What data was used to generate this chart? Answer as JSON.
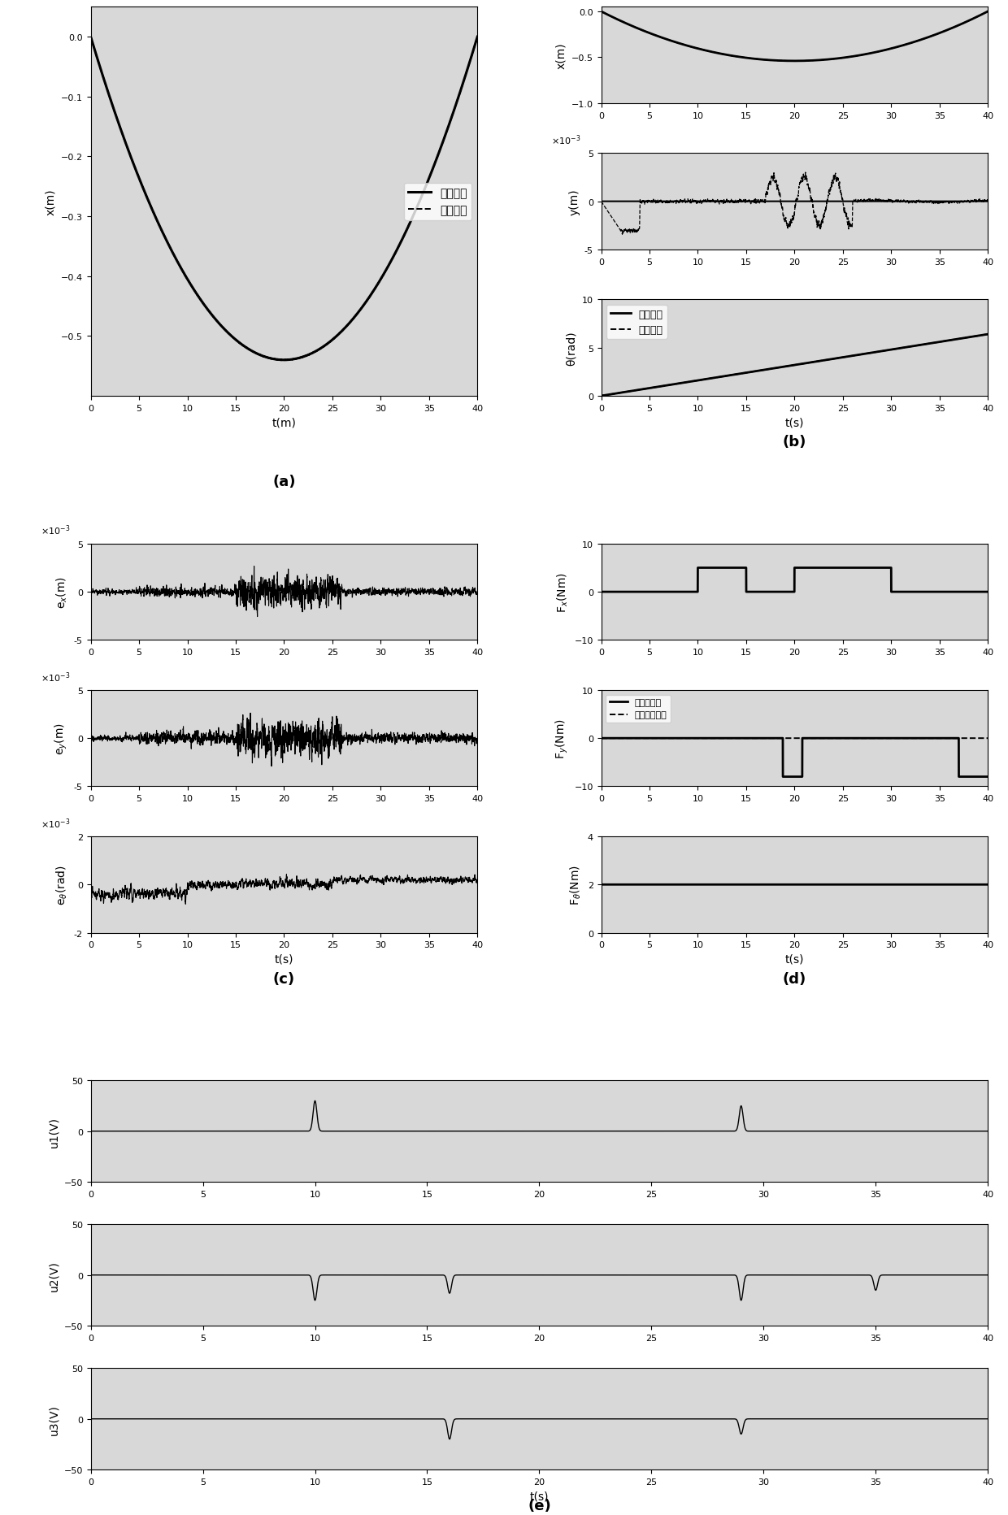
{
  "t_end": 40,
  "dt": 0.01,
  "fig_size": [
    12.4,
    18.65
  ],
  "panel_a": {
    "ylabel": "x(m)",
    "xlabel": "t(m)",
    "xlim": [
      0,
      40
    ],
    "ylim": [
      -0.6,
      0.05
    ],
    "yticks": [
      0,
      -0.1,
      -0.2,
      -0.3,
      -0.4,
      -0.5
    ],
    "legend": [
      "参考轨迹",
      "实际轨迹"
    ],
    "label_a": "(a)"
  },
  "panel_b_x": {
    "ylabel": "x(m)",
    "xlim": [
      0,
      40
    ],
    "ylim": [
      -1,
      0.05
    ],
    "yticks": [
      0,
      -0.5,
      -1
    ]
  },
  "panel_b_y": {
    "ylabel": "y(m)",
    "xlim": [
      0,
      40
    ],
    "ylim": [
      -0.005,
      0.005
    ],
    "yticks": [
      -0.005,
      0,
      0.005
    ]
  },
  "panel_b_theta": {
    "ylabel": "θ(rad)",
    "xlabel": "t(s)",
    "xlim": [
      0,
      40
    ],
    "ylim": [
      0,
      10
    ],
    "yticks": [
      0,
      5,
      10
    ],
    "legend": [
      "参考轨迹",
      "实际轨迹"
    ],
    "label_b": "(b)"
  },
  "panel_c_ex": {
    "ylabel": "e$_x$(m)",
    "xlim": [
      0,
      40
    ],
    "ylim": [
      -0.005,
      0.005
    ],
    "yticks": [
      -0.005,
      0,
      0.005
    ]
  },
  "panel_c_ey": {
    "ylabel": "e$_y$(m)",
    "xlim": [
      0,
      40
    ],
    "ylim": [
      -0.005,
      0.005
    ],
    "yticks": [
      -0.005,
      0,
      0.005
    ]
  },
  "panel_c_et": {
    "ylabel": "e$_\\theta$(rad)",
    "xlabel": "t(s)",
    "xlim": [
      0,
      40
    ],
    "ylim": [
      -0.002,
      0.002
    ],
    "yticks": [
      -0.002,
      0,
      0.002
    ],
    "label_c": "(c)"
  },
  "panel_d_fx": {
    "ylabel": "F$_x$(Nm)",
    "xlim": [
      0,
      40
    ],
    "ylim": [
      -10,
      10
    ],
    "yticks": [
      -10,
      0,
      10
    ]
  },
  "panel_d_fy": {
    "ylabel": "F$_y$(Nm)",
    "xlim": [
      0,
      40
    ],
    "ylim": [
      -10,
      10
    ],
    "yticks": [
      -10,
      0,
      10
    ],
    "legend": [
      "实际扫动量",
      "近似器预测値"
    ]
  },
  "panel_d_ft": {
    "ylabel": "F$_\\theta$(Nm)",
    "xlabel": "t(s)",
    "xlim": [
      0,
      40
    ],
    "ylim": [
      0,
      4
    ],
    "yticks": [
      0,
      2,
      4
    ],
    "label_d": "(d)"
  },
  "panel_e_u1": {
    "ylabel": "u1(V)",
    "xlim": [
      0,
      40
    ],
    "ylim": [
      -50,
      50
    ],
    "yticks": [
      -50,
      0,
      50
    ]
  },
  "panel_e_u2": {
    "ylabel": "u2(V)",
    "xlim": [
      0,
      40
    ],
    "ylim": [
      -50,
      50
    ],
    "yticks": [
      -50,
      0,
      50
    ]
  },
  "panel_e_u3": {
    "ylabel": "u3(V)",
    "xlabel": "t(s)",
    "xlim": [
      0,
      40
    ],
    "ylim": [
      -50,
      50
    ],
    "yticks": [
      -50,
      0,
      50
    ],
    "label_e": "(e)"
  },
  "xticks": [
    0,
    5,
    10,
    15,
    20,
    25,
    30,
    35,
    40
  ],
  "bg_color": "#d8d8d8",
  "line_color": "black",
  "font_size_label": 10,
  "font_size_tick": 8,
  "font_size_caption": 13
}
